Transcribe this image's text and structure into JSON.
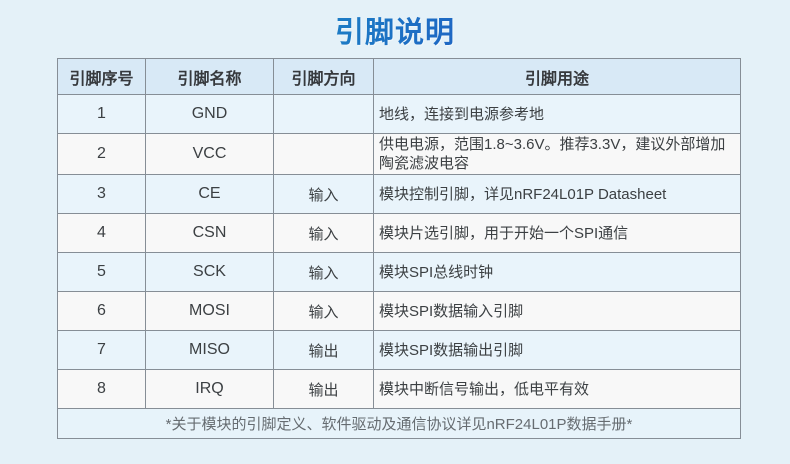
{
  "page": {
    "title": "引脚说明"
  },
  "table": {
    "headers": [
      "引脚序号",
      "引脚名称",
      "引脚方向",
      "引脚用途"
    ],
    "rows": [
      {
        "no": "1",
        "name": "GND",
        "dir": "",
        "desc": "地线，连接到电源参考地"
      },
      {
        "no": "2",
        "name": "VCC",
        "dir": "",
        "desc": "供电电源，范围1.8~3.6V。推荐3.3V，建议外部增加陶瓷滤波电容"
      },
      {
        "no": "3",
        "name": "CE",
        "dir": "输入",
        "desc": "模块控制引脚，详见nRF24L01P Datasheet"
      },
      {
        "no": "4",
        "name": "CSN",
        "dir": "输入",
        "desc": "模块片选引脚，用于开始一个SPI通信"
      },
      {
        "no": "5",
        "name": "SCK",
        "dir": "输入",
        "desc": "模块SPI总线时钟"
      },
      {
        "no": "6",
        "name": "MOSI",
        "dir": "输入",
        "desc": "模块SPI数据输入引脚"
      },
      {
        "no": "7",
        "name": "MISO",
        "dir": "输出",
        "desc": "模块SPI数据输出引脚"
      },
      {
        "no": "8",
        "name": "IRQ",
        "dir": "输出",
        "desc": "模块中断信号输出，低电平有效"
      }
    ],
    "footnote": "*关于模块的引脚定义、软件驱动及通信协议详见nRF24L01P数据手册*"
  },
  "colors": {
    "page_bg": "#e4f1f8",
    "header_bg": "#d8e9f6",
    "row_odd_bg": "#e9f4fb",
    "row_even_bg": "#f8f8f8",
    "footer_bg": "#e7f3fa",
    "border": "#868e96",
    "text": "#3c4043",
    "footnote_text": "#666c71",
    "title_grad_start": "#18a0c8",
    "title_grad_end": "#2143c0"
  }
}
